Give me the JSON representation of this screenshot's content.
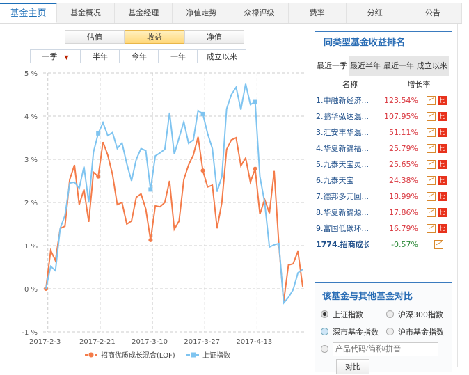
{
  "tabs": [
    "基金主页",
    "基金概况",
    "基金经理",
    "净值走势",
    "众禄评级",
    "费率",
    "分红",
    "公告"
  ],
  "view_toggle": [
    "估值",
    "收益",
    "净值"
  ],
  "period_toggle": [
    "一季",
    "半年",
    "今年",
    "一年",
    "成立以来"
  ],
  "chart_data": {
    "type": "line",
    "yticks": [
      "5 %",
      "4 %",
      "3 %",
      "2 %",
      "1 %",
      "0 %",
      "-1 %"
    ],
    "ylim": [
      -1,
      5
    ],
    "x_tick_labels": [
      "2017-2-3",
      "2017-2-21",
      "2017-3-10",
      "2017-3-27",
      "2017-4-13"
    ],
    "grid": true,
    "legend_placement": "bottom",
    "series": [
      {
        "name": "招商优质成长混合(LOF)",
        "color": "#f47c4a",
        "values": [
          0,
          0.89,
          0.65,
          1.4,
          1.45,
          2.53,
          2.87,
          1.95,
          2.3,
          1.55,
          2.7,
          2.6,
          3.4,
          3.1,
          2.65,
          1.95,
          2.0,
          1.5,
          1.57,
          2.12,
          2.2,
          1.85,
          1.13,
          1.92,
          1.9,
          2.0,
          2.5,
          1.38,
          1.57,
          2.53,
          2.87,
          3.1,
          3.52,
          2.74,
          2.36,
          2.4,
          1.4,
          2.0,
          3.23,
          3.45,
          3.5,
          2.85,
          3.03,
          2.47,
          2.78,
          1.73,
          2.07,
          1.75,
          2.73,
          1.0,
          -0.3,
          0.55,
          0.58,
          0.87,
          0.05
        ]
      },
      {
        "name": "上证指数",
        "color": "#7fc4f0",
        "values": [
          0,
          0.52,
          0.42,
          1.4,
          1.7,
          2.45,
          2.47,
          2.33,
          2.83,
          2.0,
          3.17,
          3.6,
          3.85,
          3.55,
          3.62,
          3.25,
          3.38,
          2.9,
          2.5,
          3.0,
          3.25,
          3.2,
          2.3,
          3.08,
          3.15,
          3.23,
          4.08,
          3.12,
          3.5,
          3.87,
          3.37,
          3.45,
          4.13,
          4.05,
          3.6,
          3.25,
          2.25,
          2.6,
          4.17,
          4.5,
          4.67,
          4.15,
          4.75,
          4.27,
          4.33,
          2.6,
          2.0,
          0.97,
          1.02,
          1.05,
          -0.33,
          -0.2,
          -0.02,
          0.37,
          0.45
        ]
      }
    ]
  },
  "ranking": {
    "title": "同类型基金收益排名",
    "tabs": [
      "最近一季",
      "最近半年",
      "最近一年",
      "成立以来"
    ],
    "col_name": "名称",
    "col_rate": "增长率",
    "rows": [
      {
        "name": "1.中融新经济...",
        "rate": "123.54%"
      },
      {
        "name": "2.鹏华弘达混...",
        "rate": "107.95%"
      },
      {
        "name": "3.汇安丰华混...",
        "rate": "51.11%"
      },
      {
        "name": "4.华夏新锦福...",
        "rate": "25.79%"
      },
      {
        "name": "5.九泰天宝灵...",
        "rate": "25.65%"
      },
      {
        "name": "6.九泰天宝",
        "rate": "24.38%"
      },
      {
        "name": "7.德邦多元回...",
        "rate": "18.99%"
      },
      {
        "name": "8.华夏新锦源...",
        "rate": "17.86%"
      },
      {
        "name": "9.富国低碳环...",
        "rate": "16.79%"
      }
    ],
    "compare_icon_label": "比",
    "own": {
      "name": "1774.招商成长",
      "rate": "-0.57%"
    }
  },
  "compare": {
    "title": "该基金与其他基金对比",
    "options": [
      "上证指数",
      "沪深300指数",
      "深市基金指数",
      "沪市基金指数"
    ],
    "input_placeholder": "产品代码/简称/拼音",
    "button": "对比"
  }
}
